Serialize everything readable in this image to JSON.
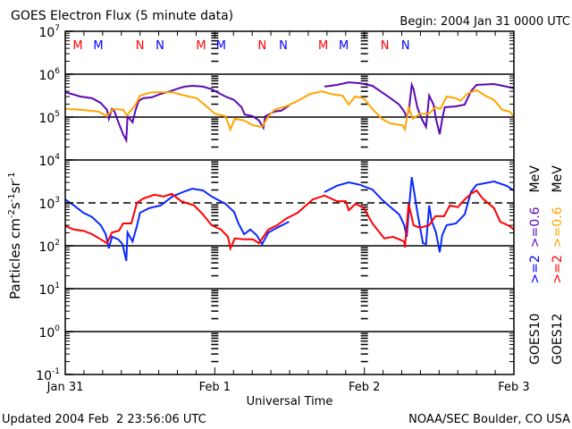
{
  "chart_data": {
    "type": "line",
    "title": "GOES Electron Flux (5 minute data)",
    "begin_label": "Begin: 2004 Jan 31 0000 UTC",
    "xlabel": "Universal Time",
    "ylabel": "Particles cm",
    "ylabel_parts": [
      "Particles cm",
      "-2",
      "s",
      "-1",
      "sr",
      "-1"
    ],
    "x_unit": "hours since 2004 Jan 31 0000 UTC",
    "xlim": [
      0,
      72
    ],
    "x_ticks": [
      {
        "hour": 0,
        "label": "Jan 31"
      },
      {
        "hour": 24,
        "label": "Feb 1"
      },
      {
        "hour": 48,
        "label": "Feb 2"
      },
      {
        "hour": 72,
        "label": "Feb 3"
      }
    ],
    "y_scale": "log10",
    "y_value_format": "log10(flux)",
    "ylim_exponent": [
      -1,
      7
    ],
    "y_ticks": [
      {
        "base": "10",
        "exp": "7"
      },
      {
        "base": "10",
        "exp": "6"
      },
      {
        "base": "10",
        "exp": "5"
      },
      {
        "base": "10",
        "exp": "4"
      },
      {
        "base": "10",
        "exp": "3"
      },
      {
        "base": "10",
        "exp": "2"
      },
      {
        "base": "10",
        "exp": "1"
      },
      {
        "base": "10",
        "exp": "0"
      },
      {
        "base": "10",
        "exp": "-1"
      }
    ],
    "threshold_exponent": 3,
    "markers": [
      {
        "label": "M",
        "hour": 2.0,
        "color": "#ff0000"
      },
      {
        "label": "M",
        "hour": 5.3,
        "color": "#0000ff"
      },
      {
        "label": "N",
        "hour": 12.0,
        "color": "#ff0000"
      },
      {
        "label": "N",
        "hour": 15.2,
        "color": "#0000ff"
      },
      {
        "label": "M",
        "hour": 21.8,
        "color": "#ff0000"
      },
      {
        "label": "M",
        "hour": 25.0,
        "color": "#0000ff"
      },
      {
        "label": "N",
        "hour": 31.6,
        "color": "#ff0000"
      },
      {
        "label": "N",
        "hour": 35.0,
        "color": "#0000ff"
      },
      {
        "label": "M",
        "hour": 41.4,
        "color": "#ff0000"
      },
      {
        "label": "M",
        "hour": 44.7,
        "color": "#0000ff"
      },
      {
        "label": "N",
        "hour": 51.3,
        "color": "#ff0000"
      },
      {
        "label": "N",
        "hour": 54.6,
        "color": "#0000ff"
      }
    ],
    "legend": [
      {
        "satellite": "GOES10",
        "parts": [
          {
            "text": ">=2",
            "color": "#0000ff"
          },
          {
            "text": ">=0.6",
            "color": "#5a0ab4"
          },
          {
            "text": "MeV",
            "color": "#000000"
          }
        ]
      },
      {
        "satellite": "GOES12",
        "parts": [
          {
            "text": ">=2",
            "color": "#ff0000"
          },
          {
            "text": ">=0.6",
            "color": "#ffa500"
          },
          {
            "text": "MeV",
            "color": "#000000"
          }
        ]
      }
    ],
    "series": [
      {
        "name": "GOES10 >=0.6 MeV",
        "color": "#5a0ab4",
        "points": [
          [
            0,
            5.58
          ],
          [
            1.0,
            5.54
          ],
          [
            2.4,
            5.48
          ],
          [
            4.3,
            5.44
          ],
          [
            5.7,
            5.33
          ],
          [
            6.7,
            5.17
          ],
          [
            7.0,
            4.96
          ],
          [
            7.5,
            5.19
          ],
          [
            7.9,
            5.13
          ],
          [
            8.6,
            4.85
          ],
          [
            9.3,
            4.6
          ],
          [
            9.8,
            4.46
          ],
          [
            10.0,
            5.02
          ],
          [
            10.8,
            4.88
          ],
          [
            11.3,
            5.17
          ],
          [
            11.8,
            5.38
          ],
          [
            12.5,
            5.44
          ],
          [
            13.9,
            5.46
          ],
          [
            15.3,
            5.54
          ],
          [
            16.8,
            5.6
          ],
          [
            18.2,
            5.67
          ],
          [
            19.2,
            5.71
          ],
          [
            20.4,
            5.73
          ],
          [
            22.1,
            5.71
          ],
          [
            23.5,
            5.65
          ],
          [
            24.4,
            5.58
          ],
          [
            25.7,
            5.48
          ],
          [
            27.1,
            5.4
          ],
          [
            28.3,
            5.23
          ],
          [
            28.8,
            5.06
          ],
          [
            30.1,
            5.02
          ],
          [
            31.1,
            4.92
          ],
          [
            31.8,
            4.75
          ],
          [
            32.1,
            5.02
          ],
          [
            33.6,
            5.13
          ],
          [
            34.7,
            5.15
          ],
          [
            35.9,
            5.27
          ],
          null,
          [
            41.6,
            5.71
          ],
          [
            43.6,
            5.75
          ],
          [
            45.5,
            5.81
          ],
          [
            47.3,
            5.79
          ],
          [
            49.3,
            5.73
          ],
          [
            50.8,
            5.58
          ],
          [
            52.2,
            5.44
          ],
          [
            53.6,
            5.29
          ],
          [
            54.4,
            5.13
          ],
          [
            54.8,
            4.98
          ],
          [
            55.2,
            5.23
          ],
          [
            55.6,
            5.75
          ],
          [
            55.9,
            5.65
          ],
          [
            56.5,
            5.23
          ],
          [
            57.2,
            4.96
          ],
          [
            57.9,
            4.77
          ],
          [
            58.4,
            5.5
          ],
          [
            59.1,
            5.29
          ],
          [
            59.5,
            4.96
          ],
          [
            60.1,
            4.6
          ],
          [
            60.5,
            4.96
          ],
          [
            60.9,
            5.23
          ],
          [
            62.7,
            5.25
          ],
          [
            64.1,
            5.29
          ],
          [
            65.1,
            5.6
          ],
          [
            66.0,
            5.75
          ],
          [
            68.8,
            5.77
          ],
          [
            70.8,
            5.71
          ],
          [
            72.0,
            5.67
          ]
        ]
      },
      {
        "name": "GOES12 >=0.6 MeV",
        "color": "#ffa500",
        "points": [
          [
            0,
            5.19
          ],
          [
            2.4,
            5.17
          ],
          [
            5.3,
            5.13
          ],
          [
            6.7,
            5.02
          ],
          [
            7.7,
            5.19
          ],
          [
            9.3,
            5.17
          ],
          [
            9.9,
            5.04
          ],
          [
            11.3,
            5.29
          ],
          [
            12.0,
            5.5
          ],
          [
            13.9,
            5.58
          ],
          [
            15.8,
            5.58
          ],
          [
            17.2,
            5.58
          ],
          [
            19.2,
            5.5
          ],
          [
            21.1,
            5.44
          ],
          [
            22.5,
            5.27
          ],
          [
            24.0,
            5.08
          ],
          [
            25.7,
            5.02
          ],
          [
            26.5,
            4.71
          ],
          [
            27.2,
            4.96
          ],
          [
            28.7,
            4.92
          ],
          [
            30.1,
            4.81
          ],
          [
            31.6,
            4.77
          ],
          [
            32.6,
            5.02
          ],
          [
            33.6,
            5.17
          ],
          [
            35.4,
            5.25
          ],
          [
            36.6,
            5.33
          ],
          [
            37.3,
            5.38
          ],
          [
            39.3,
            5.54
          ],
          [
            41.2,
            5.6
          ],
          [
            42.6,
            5.54
          ],
          [
            44.5,
            5.5
          ],
          [
            45.5,
            5.29
          ],
          [
            46.5,
            5.48
          ],
          [
            47.9,
            5.44
          ],
          [
            49.3,
            5.19
          ],
          [
            50.8,
            4.96
          ],
          [
            52.2,
            4.85
          ],
          [
            54.1,
            4.81
          ],
          [
            54.5,
            4.71
          ],
          [
            55.1,
            5.23
          ],
          [
            55.8,
            4.96
          ],
          [
            56.9,
            5.08
          ],
          [
            58.4,
            5.08
          ],
          [
            59.4,
            5.23
          ],
          [
            60.2,
            5.19
          ],
          [
            61.2,
            5.48
          ],
          [
            62.7,
            5.44
          ],
          [
            63.4,
            5.38
          ],
          [
            64.5,
            5.54
          ],
          [
            66.0,
            5.63
          ],
          [
            67.4,
            5.5
          ],
          [
            68.8,
            5.4
          ],
          [
            70.1,
            5.17
          ],
          [
            71.3,
            5.13
          ],
          [
            72.0,
            5.02
          ]
        ]
      },
      {
        "name": "GOES10 >=2 MeV",
        "color": "#0a28ff",
        "points": [
          [
            0,
            3.08
          ],
          [
            1.4,
            2.94
          ],
          [
            2.9,
            2.77
          ],
          [
            4.3,
            2.67
          ],
          [
            5.7,
            2.48
          ],
          [
            6.5,
            2.27
          ],
          [
            7.0,
            1.94
          ],
          [
            7.5,
            2.21
          ],
          [
            8.5,
            2.15
          ],
          [
            9.2,
            2.04
          ],
          [
            9.8,
            1.65
          ],
          [
            10.0,
            2.31
          ],
          [
            10.8,
            2.1
          ],
          [
            11.5,
            2.46
          ],
          [
            12.0,
            2.77
          ],
          [
            13.5,
            2.88
          ],
          [
            15.3,
            2.94
          ],
          [
            17.2,
            3.15
          ],
          [
            19.2,
            3.27
          ],
          [
            20.4,
            3.33
          ],
          [
            22.1,
            3.29
          ],
          [
            23.5,
            3.15
          ],
          [
            24.4,
            3.08
          ],
          [
            25.7,
            2.98
          ],
          [
            27.1,
            2.79
          ],
          [
            27.8,
            2.52
          ],
          [
            28.7,
            2.27
          ],
          [
            29.7,
            2.38
          ],
          [
            30.7,
            2.25
          ],
          [
            31.6,
            2.04
          ],
          [
            32.6,
            2.31
          ],
          [
            34.0,
            2.42
          ],
          [
            35.9,
            2.56
          ],
          null,
          [
            41.6,
            3.25
          ],
          [
            43.6,
            3.4
          ],
          [
            45.5,
            3.48
          ],
          [
            47.3,
            3.42
          ],
          [
            49.3,
            3.31
          ],
          [
            50.8,
            3.08
          ],
          [
            52.2,
            2.9
          ],
          [
            53.6,
            2.73
          ],
          [
            54.4,
            2.48
          ],
          [
            54.8,
            2.21
          ],
          [
            55.2,
            2.94
          ],
          [
            55.6,
            3.6
          ],
          [
            55.9,
            3.35
          ],
          [
            56.5,
            2.79
          ],
          [
            57.4,
            2.06
          ],
          [
            57.9,
            2.04
          ],
          [
            58.4,
            2.94
          ],
          [
            58.8,
            2.58
          ],
          [
            59.5,
            2.31
          ],
          [
            60.1,
            1.85
          ],
          [
            60.5,
            2.25
          ],
          [
            61.2,
            2.48
          ],
          [
            62.7,
            2.52
          ],
          [
            64.1,
            2.73
          ],
          [
            65.1,
            3.25
          ],
          [
            66.0,
            3.42
          ],
          [
            68.8,
            3.5
          ],
          [
            70.8,
            3.4
          ],
          [
            72.0,
            3.29
          ]
        ]
      },
      {
        "name": "GOES12 >=2 MeV",
        "color": "#ff0000",
        "points": [
          [
            0,
            2.46
          ],
          [
            1.4,
            2.38
          ],
          [
            2.9,
            2.35
          ],
          [
            4.3,
            2.27
          ],
          [
            5.7,
            2.15
          ],
          [
            6.7,
            2.06
          ],
          [
            7.5,
            2.31
          ],
          [
            8.6,
            2.35
          ],
          [
            9.3,
            2.52
          ],
          [
            10.6,
            2.52
          ],
          [
            11.5,
            3.0
          ],
          [
            12.5,
            3.1
          ],
          [
            14.3,
            3.19
          ],
          [
            15.8,
            3.15
          ],
          [
            17.1,
            3.21
          ],
          [
            18.6,
            3.04
          ],
          [
            20.7,
            2.94
          ],
          [
            22.1,
            2.73
          ],
          [
            23.5,
            2.48
          ],
          [
            25.0,
            2.38
          ],
          [
            26.1,
            2.21
          ],
          [
            26.5,
            1.94
          ],
          [
            27.2,
            2.17
          ],
          [
            28.7,
            2.15
          ],
          [
            30.1,
            2.15
          ],
          [
            31.1,
            2.06
          ],
          [
            32.6,
            2.38
          ],
          [
            34.0,
            2.48
          ],
          [
            35.4,
            2.63
          ],
          [
            37.3,
            2.77
          ],
          [
            39.7,
            3.08
          ],
          [
            41.6,
            3.17
          ],
          [
            43.6,
            3.04
          ],
          [
            45.0,
            3.04
          ],
          [
            45.5,
            2.83
          ],
          [
            46.6,
            2.98
          ],
          [
            47.9,
            2.88
          ],
          [
            49.3,
            2.52
          ],
          [
            51.2,
            2.17
          ],
          [
            52.6,
            2.21
          ],
          [
            54.4,
            2.1
          ],
          [
            54.5,
            1.96
          ],
          [
            55.1,
            2.98
          ],
          [
            55.9,
            2.48
          ],
          [
            56.9,
            2.42
          ],
          [
            58.4,
            2.48
          ],
          [
            59.4,
            2.69
          ],
          [
            60.8,
            2.69
          ],
          [
            61.7,
            2.94
          ],
          [
            63.0,
            2.9
          ],
          [
            64.1,
            3.08
          ],
          [
            65.1,
            3.21
          ],
          [
            66.0,
            3.29
          ],
          [
            67.0,
            3.1
          ],
          [
            68.8,
            2.88
          ],
          [
            69.8,
            2.56
          ],
          [
            71.3,
            2.46
          ],
          [
            72.0,
            2.38
          ]
        ]
      }
    ]
  },
  "footer": {
    "updated": "Updated 2004 Feb  2 23:56:06 UTC",
    "source": "NOAA/SEC Boulder, CO USA"
  }
}
